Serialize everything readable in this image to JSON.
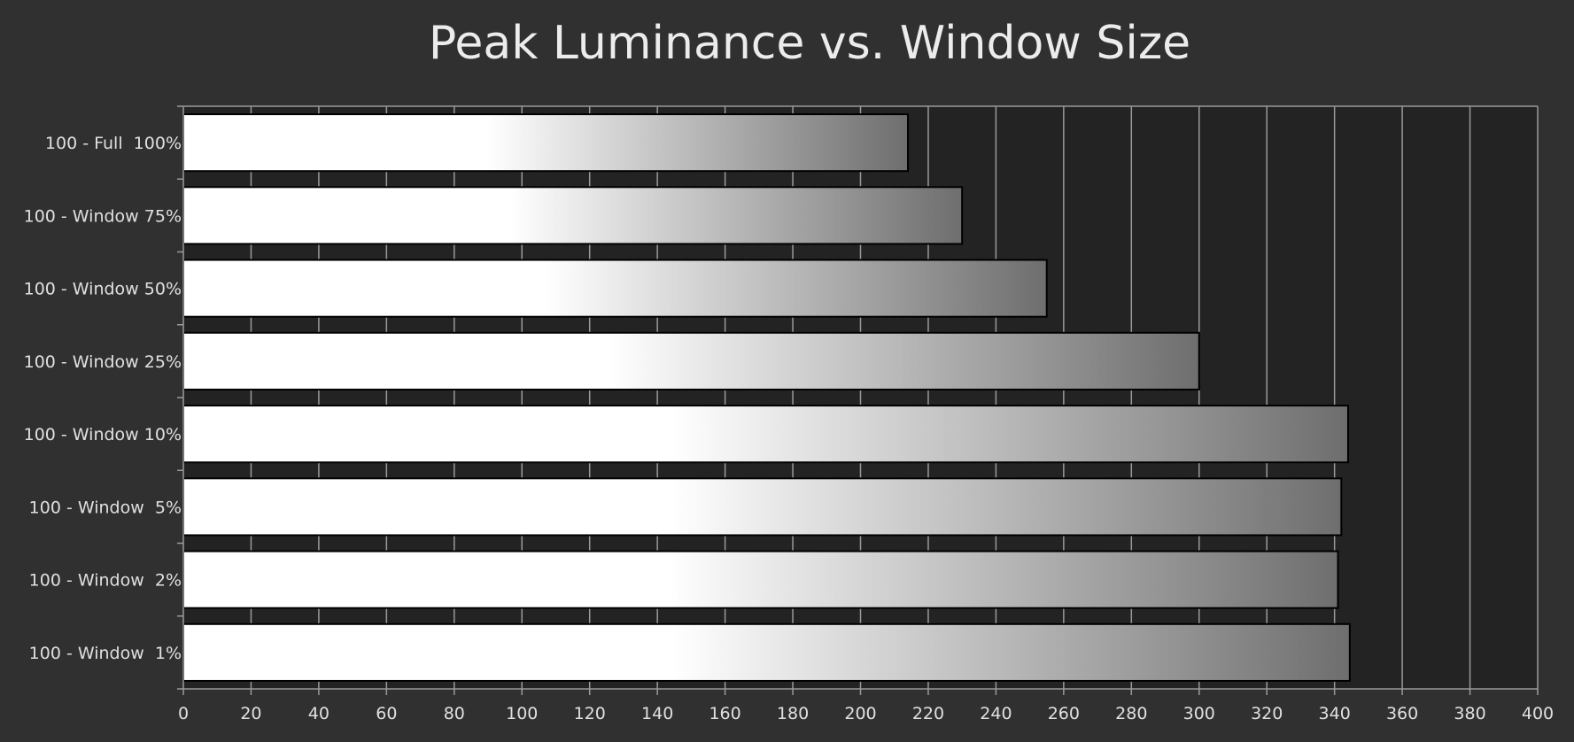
{
  "chart_data": {
    "type": "bar",
    "orientation": "horizontal",
    "title": "Peak Luminance vs. Window Size",
    "categories": [
      "100 - Full  100%",
      "100 - Window 75%",
      "100 - Window 50%",
      "100 - Window 25%",
      "100 - Window 10%",
      "100 - Window  5%",
      "100 - Window  2%",
      "100 - Window  1%"
    ],
    "values": [
      214,
      230,
      255,
      300,
      344,
      342,
      341,
      344.5
    ],
    "xlim": [
      0,
      400
    ],
    "xticks": [
      0,
      20,
      40,
      60,
      80,
      100,
      120,
      140,
      160,
      180,
      200,
      220,
      240,
      260,
      280,
      300,
      320,
      340,
      360,
      380,
      400
    ],
    "grid": true,
    "legend": "none",
    "colors": {
      "page_background": "#303030",
      "plot_background": "#232323",
      "gridline": "#9a9a9a",
      "bar_gradient_start": "#ffffff",
      "bar_gradient_end": "#6e6e6e",
      "bar_outline": "#000000",
      "text": "#e0e0e0"
    }
  }
}
